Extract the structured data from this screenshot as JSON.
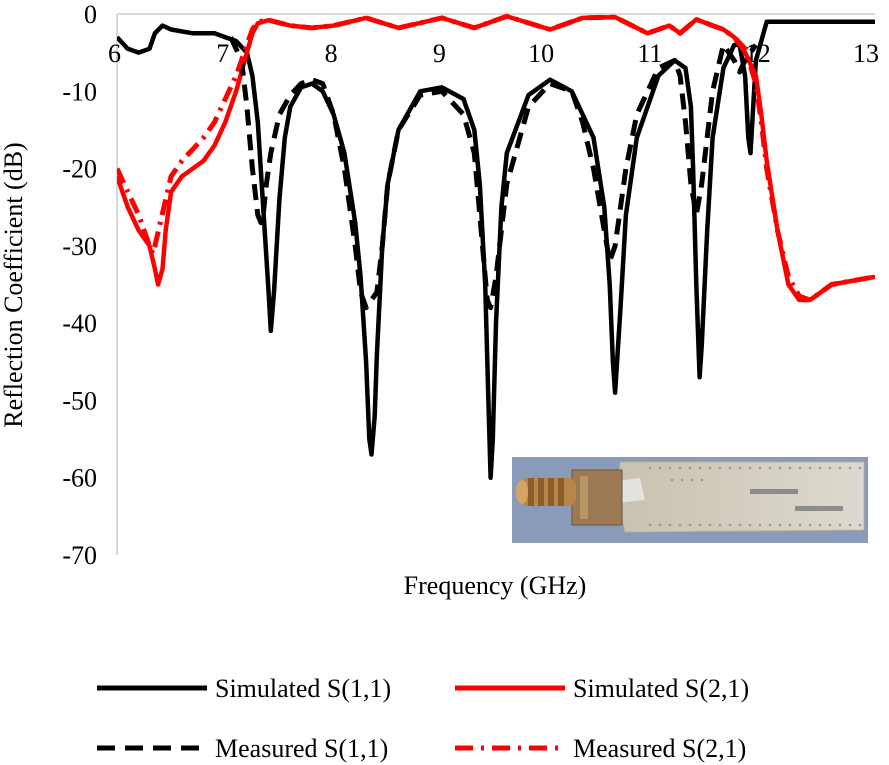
{
  "chart_data": {
    "type": "line",
    "title": "",
    "xlabel": "Frequency (GHz)",
    "ylabel": "Reflection Coefficient (dB)",
    "xlim": [
      6,
      13
    ],
    "ylim": [
      -70,
      0
    ],
    "xticks": [
      6,
      7,
      8,
      9,
      10,
      11,
      12,
      13
    ],
    "yticks": [
      0,
      -10,
      -20,
      -30,
      -40,
      -50,
      -60,
      -70
    ],
    "xtick_labels": [
      "6",
      "7",
      "8",
      "9",
      "10",
      "11",
      "12",
      "13"
    ],
    "ytick_labels": [
      "0",
      "-10",
      "-20",
      "-30",
      "-40",
      "-50",
      "-60",
      "-70"
    ],
    "grid": false,
    "legend_position": "bottom",
    "inset": "photo of fabricated antenna with SMA connector",
    "series": [
      {
        "name": "Simulated S(1,1)",
        "color": "#000000",
        "style": "solid",
        "x": [
          6.0,
          6.1,
          6.2,
          6.3,
          6.35,
          6.42,
          6.5,
          6.7,
          6.9,
          7.0,
          7.1,
          7.2,
          7.25,
          7.3,
          7.35,
          7.4,
          7.42,
          7.45,
          7.5,
          7.55,
          7.6,
          7.7,
          7.8,
          7.9,
          8.0,
          8.1,
          8.2,
          8.25,
          8.3,
          8.33,
          8.35,
          8.38,
          8.4,
          8.45,
          8.5,
          8.6,
          8.8,
          9.0,
          9.2,
          9.3,
          9.35,
          9.4,
          9.43,
          9.45,
          9.47,
          9.5,
          9.55,
          9.6,
          9.8,
          10.0,
          10.2,
          10.4,
          10.5,
          10.55,
          10.58,
          10.6,
          10.65,
          10.7,
          10.8,
          11.0,
          11.15,
          11.25,
          11.3,
          11.32,
          11.35,
          11.38,
          11.4,
          11.45,
          11.5,
          11.6,
          11.7,
          11.75,
          11.8,
          11.83,
          11.85,
          11.9,
          12.0,
          12.5,
          13.0
        ],
        "y": [
          -3,
          -4.5,
          -5,
          -4.5,
          -2.5,
          -1.5,
          -2,
          -2.5,
          -2.5,
          -3,
          -3.5,
          -5,
          -8,
          -14,
          -25,
          -36,
          -41,
          -36,
          -24,
          -16,
          -12,
          -9.5,
          -9,
          -10,
          -13,
          -18,
          -27,
          -34,
          -45,
          -55,
          -57,
          -52,
          -44,
          -30,
          -22,
          -15,
          -10,
          -9.5,
          -11,
          -15,
          -22,
          -35,
          -50,
          -60,
          -55,
          -40,
          -25,
          -18,
          -10.5,
          -8.5,
          -10,
          -16,
          -25,
          -35,
          -45,
          -49,
          -38,
          -26,
          -16,
          -8,
          -6,
          -7,
          -12,
          -20,
          -35,
          -47,
          -43,
          -28,
          -16,
          -7,
          -4,
          -4,
          -8,
          -16,
          -18,
          -6,
          -1,
          -1,
          -1
        ]
      },
      {
        "name": "Simulated S(2,1)",
        "color": "#ff0000",
        "style": "solid",
        "x": [
          6.0,
          6.1,
          6.2,
          6.3,
          6.35,
          6.38,
          6.42,
          6.45,
          6.5,
          6.6,
          6.7,
          6.8,
          6.9,
          7.0,
          7.1,
          7.2,
          7.25,
          7.3,
          7.4,
          7.6,
          7.8,
          8.0,
          8.3,
          8.6,
          9.0,
          9.3,
          9.6,
          10.0,
          10.3,
          10.6,
          10.9,
          11.1,
          11.2,
          11.35,
          11.5,
          11.6,
          11.7,
          11.8,
          11.9,
          11.95,
          12.0,
          12.1,
          12.2,
          12.3,
          12.4,
          12.6,
          12.8,
          13.0
        ],
        "y": [
          -21,
          -25,
          -28,
          -30,
          -33,
          -35,
          -33,
          -28,
          -23,
          -21,
          -20,
          -19,
          -17,
          -14,
          -10,
          -5,
          -2.5,
          -1.2,
          -0.8,
          -1.5,
          -1.8,
          -1.5,
          -0.5,
          -1.8,
          -0.5,
          -1.8,
          -0.3,
          -2,
          -0.5,
          -0.4,
          -2.5,
          -1.5,
          -2.5,
          -0.7,
          -1.5,
          -2,
          -3,
          -5,
          -8,
          -13,
          -19,
          -28,
          -35,
          -37,
          -37,
          -35,
          -34.5,
          -34
        ]
      },
      {
        "name": "Measured S(1,1)",
        "color": "#000000",
        "style": "dashed",
        "x": [
          7.05,
          7.15,
          7.2,
          7.25,
          7.3,
          7.33,
          7.35,
          7.38,
          7.42,
          7.5,
          7.6,
          7.7,
          7.8,
          7.9,
          8.0,
          8.1,
          8.2,
          8.25,
          8.3,
          8.35,
          8.4,
          8.45,
          8.5,
          8.6,
          8.8,
          9.0,
          9.2,
          9.3,
          9.35,
          9.4,
          9.42,
          9.45,
          9.5,
          9.6,
          9.8,
          10.0,
          10.2,
          10.3,
          10.4,
          10.5,
          10.55,
          10.6,
          10.7,
          10.8,
          11.0,
          11.15,
          11.2,
          11.25,
          11.3,
          11.35,
          11.4,
          11.5,
          11.6,
          11.7,
          11.75,
          11.8,
          11.85,
          11.9
        ],
        "y": [
          -3,
          -6,
          -12,
          -20,
          -26,
          -27,
          -26,
          -22,
          -18,
          -13,
          -10.5,
          -9,
          -8.5,
          -9,
          -13,
          -20,
          -30,
          -36,
          -38,
          -37,
          -36,
          -30,
          -22,
          -15,
          -10.5,
          -10,
          -13,
          -18,
          -26,
          -34,
          -37,
          -38,
          -34,
          -22,
          -12,
          -9,
          -10,
          -14,
          -20,
          -28,
          -32,
          -30,
          -20,
          -13,
          -7,
          -6,
          -8,
          -14,
          -22,
          -26,
          -22,
          -10,
          -4,
          -6,
          -7.5,
          -6,
          -5,
          -4
        ]
      },
      {
        "name": "Measured S(2,1)",
        "color": "#ff0000",
        "style": "dashdot",
        "x": [
          6.0,
          6.1,
          6.2,
          6.25,
          6.3,
          6.33,
          6.35,
          6.4,
          6.45,
          6.5,
          6.6,
          6.7,
          6.8,
          6.9,
          7.0,
          7.1,
          7.2,
          7.25,
          7.3,
          7.4,
          7.6,
          7.8,
          8.0,
          8.3,
          8.6,
          9.0,
          9.3,
          9.6,
          10.0,
          10.3,
          10.6,
          10.9,
          11.1,
          11.2,
          11.35,
          11.5,
          11.6,
          11.7,
          11.8,
          11.9,
          11.95,
          12.0,
          12.1,
          12.2,
          12.3,
          12.4,
          12.6,
          12.8,
          13.0
        ],
        "y": [
          -20,
          -23,
          -26,
          -28,
          -30,
          -31,
          -30,
          -27,
          -24,
          -21,
          -19,
          -17.5,
          -16,
          -14,
          -11,
          -8,
          -4,
          -2,
          -1,
          -0.8,
          -1.5,
          -1.8,
          -1.5,
          -0.5,
          -1.8,
          -0.5,
          -1.8,
          -0.3,
          -2,
          -0.5,
          -0.4,
          -2.5,
          -1.5,
          -2.5,
          -0.7,
          -1.5,
          -2,
          -3,
          -4.5,
          -9,
          -14,
          -20,
          -28,
          -34,
          -36.5,
          -37,
          -35,
          -34.5,
          -34
        ]
      }
    ]
  },
  "legend": {
    "sim_s11": "Simulated S(1,1)",
    "sim_s21": "Simulated S(2,1)",
    "meas_s11": "Measured S(1,1)",
    "meas_s21": "Measured S(2,1)"
  }
}
